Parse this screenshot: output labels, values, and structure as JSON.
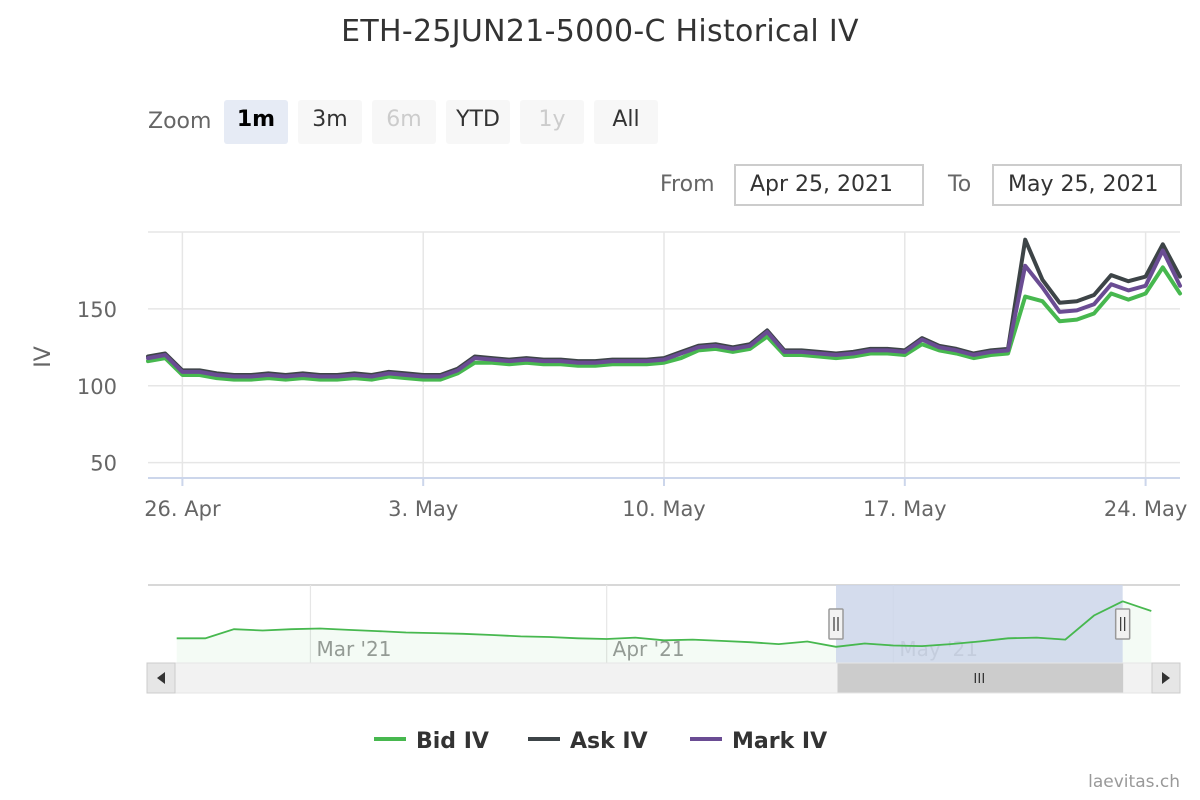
{
  "chart_title": "ETH-25JUN21-5000-C Historical IV",
  "zoom": {
    "label": "Zoom",
    "buttons": [
      {
        "label": "1m",
        "state": "active"
      },
      {
        "label": "3m",
        "state": "normal"
      },
      {
        "label": "6m",
        "state": "disabled"
      },
      {
        "label": "YTD",
        "state": "normal"
      },
      {
        "label": "1y",
        "state": "disabled"
      },
      {
        "label": "All",
        "state": "normal"
      }
    ]
  },
  "range": {
    "from_label": "From",
    "from_value": "Apr 25, 2021",
    "to_label": "To",
    "to_value": "May 25, 2021"
  },
  "credits": "laevitas.ch",
  "colors": {
    "bid": "#47b84f",
    "ask": "#3d4447",
    "mark": "#6a4c93",
    "grid": "#e6e6e6",
    "navigator_fill": "#47b84f",
    "navigator_mask": "#cdd6ea"
  },
  "chart_data": {
    "type": "line",
    "title": "ETH-25JUN21-5000-C Historical IV",
    "ylabel": "IV",
    "ylim": [
      40,
      200
    ],
    "yticks": [
      {
        "v": 50,
        "label": "50"
      },
      {
        "v": 100,
        "label": "100"
      },
      {
        "v": 150,
        "label": "150"
      }
    ],
    "xlim": [
      "2021-04-25",
      "2021-05-25"
    ],
    "xticks": [
      {
        "date": "2021-04-26",
        "label": "26. Apr"
      },
      {
        "date": "2021-05-03",
        "label": "3. May"
      },
      {
        "date": "2021-05-10",
        "label": "10. May"
      },
      {
        "date": "2021-05-17",
        "label": "17. May"
      },
      {
        "date": "2021-05-24",
        "label": "24. May"
      }
    ],
    "x": [
      "2021-04-25",
      "2021-04-25 12:00",
      "2021-04-26",
      "2021-04-26 12:00",
      "2021-04-27",
      "2021-04-27 12:00",
      "2021-04-28",
      "2021-04-28 12:00",
      "2021-04-29",
      "2021-04-29 12:00",
      "2021-04-30",
      "2021-04-30 12:00",
      "2021-05-01",
      "2021-05-01 12:00",
      "2021-05-02",
      "2021-05-02 12:00",
      "2021-05-03",
      "2021-05-03 12:00",
      "2021-05-04",
      "2021-05-04 12:00",
      "2021-05-05",
      "2021-05-05 12:00",
      "2021-05-06",
      "2021-05-06 12:00",
      "2021-05-07",
      "2021-05-07 12:00",
      "2021-05-08",
      "2021-05-08 12:00",
      "2021-05-09",
      "2021-05-09 12:00",
      "2021-05-10",
      "2021-05-10 12:00",
      "2021-05-11",
      "2021-05-11 12:00",
      "2021-05-12",
      "2021-05-12 12:00",
      "2021-05-13",
      "2021-05-13 12:00",
      "2021-05-14",
      "2021-05-14 12:00",
      "2021-05-15",
      "2021-05-15 12:00",
      "2021-05-16",
      "2021-05-16 12:00",
      "2021-05-17",
      "2021-05-17 12:00",
      "2021-05-18",
      "2021-05-18 12:00",
      "2021-05-19",
      "2021-05-19 12:00",
      "2021-05-20",
      "2021-05-20 12:00",
      "2021-05-21",
      "2021-05-21 12:00",
      "2021-05-22",
      "2021-05-22 12:00",
      "2021-05-23",
      "2021-05-23 12:00",
      "2021-05-24",
      "2021-05-24 12:00",
      "2021-05-25"
    ],
    "series": [
      {
        "name": "Bid IV",
        "color": "#47b84f",
        "values": [
          116,
          118,
          107,
          107,
          105,
          104,
          104,
          105,
          104,
          105,
          104,
          104,
          105,
          104,
          106,
          105,
          104,
          104,
          108,
          115,
          115,
          114,
          115,
          114,
          114,
          113,
          113,
          114,
          114,
          114,
          115,
          118,
          123,
          124,
          122,
          124,
          132,
          120,
          120,
          119,
          118,
          119,
          121,
          121,
          120,
          127,
          123,
          121,
          118,
          120,
          121,
          158,
          155,
          142,
          143,
          147,
          160,
          156,
          160,
          177,
          160
        ]
      },
      {
        "name": "Ask IV",
        "color": "#3d4447",
        "values": [
          119,
          121,
          110,
          110,
          108,
          107,
          107,
          108,
          107,
          108,
          107,
          107,
          108,
          107,
          109,
          108,
          107,
          107,
          111,
          119,
          118,
          117,
          118,
          117,
          117,
          116,
          116,
          117,
          117,
          117,
          118,
          122,
          126,
          127,
          125,
          127,
          136,
          123,
          123,
          122,
          121,
          122,
          124,
          124,
          123,
          131,
          126,
          124,
          121,
          123,
          124,
          195,
          169,
          154,
          155,
          159,
          172,
          168,
          171,
          192,
          171
        ]
      },
      {
        "name": "Mark IV",
        "color": "#6a4c93",
        "values": [
          118,
          120,
          109,
          109,
          107,
          106,
          106,
          107,
          106,
          107,
          106,
          106,
          107,
          106,
          108,
          107,
          106,
          106,
          110,
          118,
          117,
          116,
          117,
          116,
          116,
          115,
          115,
          116,
          116,
          116,
          117,
          121,
          125,
          126,
          124,
          126,
          135,
          122,
          122,
          121,
          120,
          121,
          123,
          123,
          122,
          130,
          125,
          123,
          120,
          122,
          123,
          178,
          164,
          148,
          149,
          153,
          166,
          162,
          165,
          188,
          165
        ]
      }
    ],
    "legend": {
      "position": "bottom-center"
    },
    "navigator": {
      "xticks": [
        {
          "date": "2021-03-01",
          "label": "Mar '21"
        },
        {
          "date": "2021-04-01",
          "label": "Apr '21"
        },
        {
          "date": "2021-05-01",
          "label": "May '21"
        }
      ],
      "xlim": [
        "2021-02-12",
        "2021-05-31"
      ],
      "selected": [
        "2021-04-25",
        "2021-05-25"
      ],
      "x": [
        "2021-02-15",
        "2021-02-18",
        "2021-02-21",
        "2021-02-24",
        "2021-02-27",
        "2021-03-02",
        "2021-03-05",
        "2021-03-08",
        "2021-03-11",
        "2021-03-14",
        "2021-03-17",
        "2021-03-20",
        "2021-03-23",
        "2021-03-26",
        "2021-03-29",
        "2021-04-01",
        "2021-04-04",
        "2021-04-07",
        "2021-04-10",
        "2021-04-13",
        "2021-04-16",
        "2021-04-19",
        "2021-04-22",
        "2021-04-25",
        "2021-04-28",
        "2021-05-01",
        "2021-05-04",
        "2021-05-07",
        "2021-05-10",
        "2021-05-13",
        "2021-05-16",
        "2021-05-19",
        "2021-05-22",
        "2021-05-25",
        "2021-05-28"
      ],
      "values": [
        118,
        118,
        132,
        130,
        132,
        133,
        131,
        129,
        127,
        126,
        125,
        123,
        121,
        120,
        118,
        117,
        119,
        115,
        116,
        114,
        112,
        109,
        113,
        105,
        110,
        107,
        106,
        109,
        113,
        118,
        119,
        116,
        153,
        175,
        160
      ]
    }
  }
}
